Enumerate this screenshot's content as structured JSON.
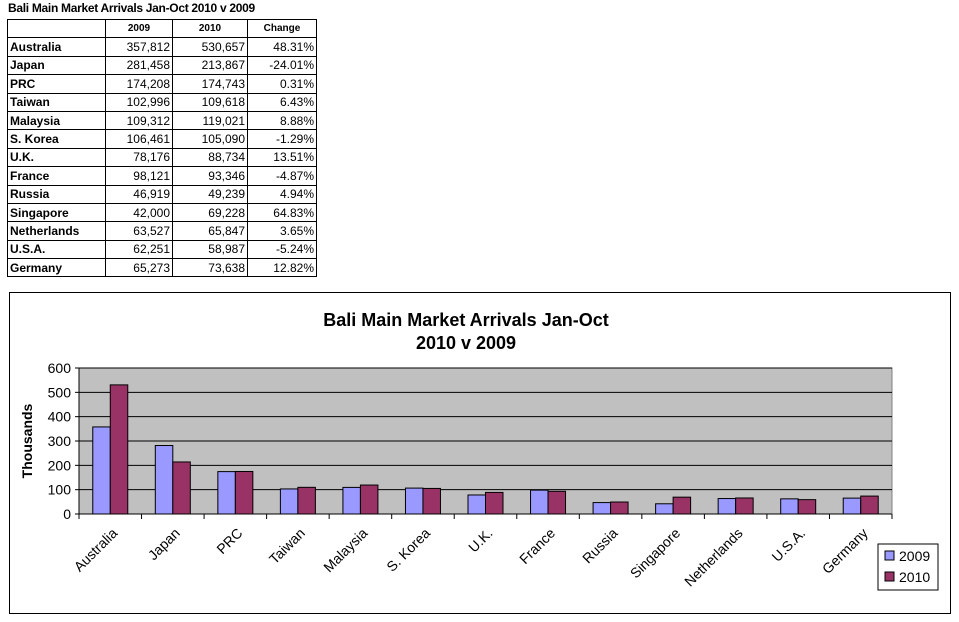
{
  "table": {
    "title": "Bali Main Market Arrivals Jan-Oct 2010 v 2009",
    "headers": [
      "",
      "2009",
      "2010",
      "Change"
    ],
    "rows": [
      [
        "Australia",
        "357,812",
        "530,657",
        "48.31%"
      ],
      [
        "Japan",
        "281,458",
        "213,867",
        "-24.01%"
      ],
      [
        "PRC",
        "174,208",
        "174,743",
        "0.31%"
      ],
      [
        "Taiwan",
        "102,996",
        "109,618",
        "6.43%"
      ],
      [
        "Malaysia",
        "109,312",
        "119,021",
        "8.88%"
      ],
      [
        "S. Korea",
        "106,461",
        "105,090",
        "-1.29%"
      ],
      [
        "U.K.",
        "78,176",
        "88,734",
        "13.51%"
      ],
      [
        "France",
        "98,121",
        "93,346",
        "-4.87%"
      ],
      [
        "Russia",
        "46,919",
        "49,239",
        "4.94%"
      ],
      [
        "Singapore",
        "42,000",
        "69,228",
        "64.83%"
      ],
      [
        "Netherlands",
        "63,527",
        "65,847",
        "3.65%"
      ],
      [
        "U.S.A.",
        "62,251",
        "58,987",
        "-5.24%"
      ],
      [
        "Germany",
        "65,273",
        "73,638",
        "12.82%"
      ]
    ]
  },
  "chart_data": {
    "type": "bar",
    "title": "Bali Main Market Arrivals Jan-Oct",
    "subtitle": "2010 v 2009",
    "xlabel": "",
    "ylabel": "Thousands",
    "ylim": [
      0,
      600
    ],
    "yticks": [
      0,
      100,
      200,
      300,
      400,
      500,
      600
    ],
    "grid": true,
    "legend": "bottom-right",
    "categories": [
      "Australia",
      "Japan",
      "PRC",
      "Taiwan",
      "Malaysia",
      "S. Korea",
      "U.K.",
      "France",
      "Russia",
      "Singapore",
      "Netherlands",
      "U.S.A.",
      "Germany"
    ],
    "series": [
      {
        "name": "2009",
        "color": "#9999ff",
        "values": [
          357.812,
          281.458,
          174.208,
          102.996,
          109.312,
          106.461,
          78.176,
          98.121,
          46.919,
          42.0,
          63.527,
          62.251,
          65.273
        ]
      },
      {
        "name": "2010",
        "color": "#993366",
        "values": [
          530.657,
          213.867,
          174.743,
          109.618,
          119.021,
          105.09,
          88.734,
          93.346,
          49.239,
          69.228,
          65.847,
          58.987,
          73.638
        ]
      }
    ],
    "plot_background": "#c0c0c0"
  }
}
